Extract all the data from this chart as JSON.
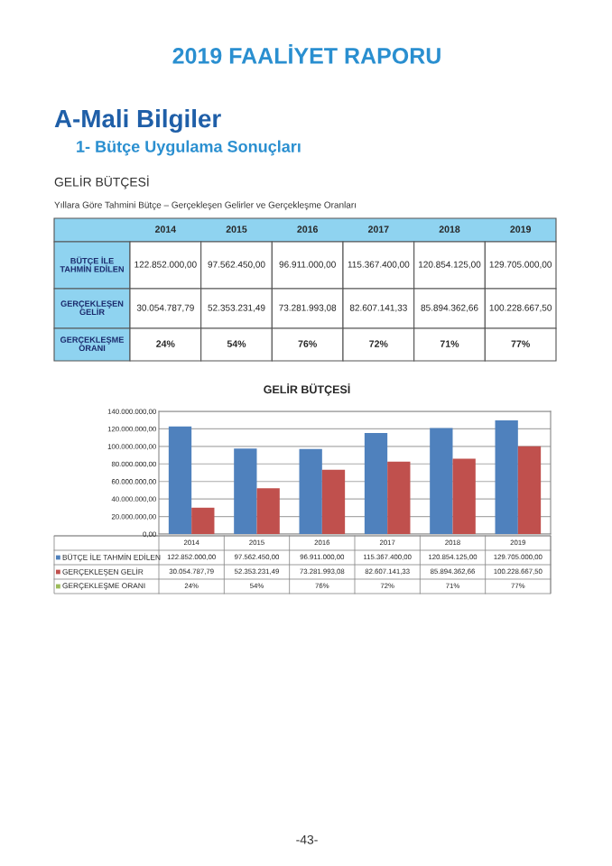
{
  "chart_data": {
    "type": "bar",
    "title": "GELİR BÜTÇESİ",
    "categories": [
      "2014",
      "2015",
      "2016",
      "2017",
      "2018",
      "2019"
    ],
    "series": [
      {
        "name": "BÜTÇE İLE TAHMİN EDİLEN",
        "color": "#4f81bd",
        "values": [
          122852000,
          97562450,
          96911000,
          115367400,
          120854125,
          129705000
        ],
        "value_labels": [
          "122.852.000,00",
          "97.562.450,00",
          "96.911.000,00",
          "115.367.400,00",
          "120.854.125,00",
          "129.705.000,00"
        ]
      },
      {
        "name": "GERÇEKLEŞEN GELİR",
        "color": "#c0504d",
        "values": [
          30054787.79,
          52353231.49,
          73281993.08,
          82607141.33,
          85894362.66,
          100228667.5
        ],
        "value_labels": [
          "30.054.787,79",
          "52.353.231,49",
          "73.281.993,08",
          "82.607.141,33",
          "85.894.362,66",
          "100.228.667,50"
        ]
      }
    ],
    "ylim": [
      0,
      140000000
    ],
    "yticks": [
      {
        "value": 0,
        "label": "0,00"
      },
      {
        "value": 20000000,
        "label": "20.000.000,00"
      },
      {
        "value": 40000000,
        "label": "40.000.000,00"
      },
      {
        "value": 60000000,
        "label": "60.000.000,00"
      },
      {
        "value": 80000000,
        "label": "80.000.000,00"
      },
      {
        "value": 100000000,
        "label": "100.000.000,00"
      },
      {
        "value": 120000000,
        "label": "120.000.000,00"
      },
      {
        "value": 140000000,
        "label": "140.000.000,00"
      }
    ],
    "grid": "y",
    "legend": "bottom",
    "annotations": [
      "2019 FAALİYET RAPORU",
      "A-Mali Bilgiler",
      "1- Bütçe Uygulama Sonuçları",
      "GELİR BÜTÇESİ",
      "Yıllara Göre Tahmini Bütçe – Gerçekleşen Gelirler ve Gerçekleşme Oranları",
      "-43-",
      "GERÇEKLEŞME ORANI",
      "24%",
      "54%",
      "76%",
      "72%",
      "71%",
      "77%"
    ]
  }
}
